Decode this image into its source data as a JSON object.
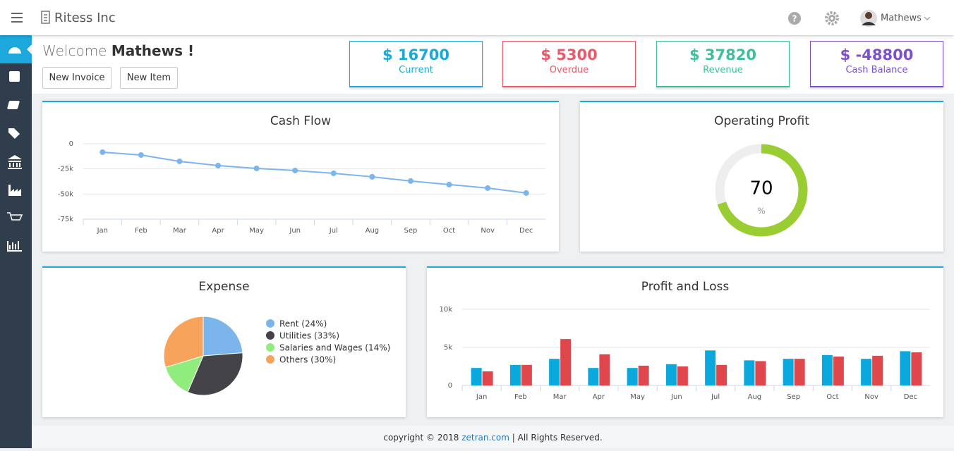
{
  "header": {
    "brand": "Ritess Inc",
    "user": "Mathews"
  },
  "welcome": {
    "greeting": "Welcome",
    "name": "Mathews !"
  },
  "buttons": [
    "New Invoice",
    "New Item"
  ],
  "kpis": [
    {
      "value": "$ 16700",
      "label": "Current",
      "color": "#1aa9d8"
    },
    {
      "value": "$ 5300",
      "label": "Overdue",
      "color": "#e8596b"
    },
    {
      "value": "$ 37820",
      "label": "Revenue",
      "color": "#3dbf9b"
    },
    {
      "value": "$ -48800",
      "label": "Cash Balance",
      "color": "#7b4fce"
    }
  ],
  "chart_data": [
    {
      "type": "line",
      "title": "Cash Flow",
      "categories": [
        "Jan",
        "Feb",
        "Mar",
        "Apr",
        "May",
        "Jun",
        "Jul",
        "Aug",
        "Sep",
        "Oct",
        "Nov",
        "Dec"
      ],
      "values": [
        -8400,
        -11200,
        -17500,
        -21700,
        -24500,
        -26600,
        -29400,
        -32900,
        -37100,
        -40600,
        -44100,
        -49000
      ],
      "color": "#7cb5ec",
      "ylim": [
        -75000,
        0
      ],
      "yticks": [
        0,
        {
          "value": -25000,
          "label": "-25k"
        },
        {
          "value": -50000,
          "label": "-50k"
        },
        {
          "value": -75000,
          "label": "-75k"
        }
      ],
      "grid": true
    },
    {
      "type": "gauge",
      "title": "Operating Profit",
      "value": 70,
      "unit": "%",
      "color": "#9acd32",
      "track_color": "#eeeeee"
    },
    {
      "type": "pie",
      "title": "Expense",
      "categories": [
        "Rent (24%)",
        "Utilities (33%)",
        "Salaries and Wages (14%)",
        "Others (30%)"
      ],
      "values": [
        24,
        33,
        14,
        30
      ],
      "colors": [
        "#7cb5ec",
        "#434348",
        "#90ed7d",
        "#f7a35c"
      ]
    },
    {
      "type": "bar",
      "title": "Profit and Loss",
      "categories": [
        "Jan",
        "Feb",
        "Mar",
        "Apr",
        "May",
        "Jun",
        "Jul",
        "Aug",
        "Sep",
        "Oct",
        "Nov",
        "Dec"
      ],
      "series": [
        {
          "color": "#0aa8dc",
          "values": [
            2300,
            2700,
            3500,
            2300,
            2300,
            2800,
            4600,
            3300,
            3500,
            4000,
            3500,
            4500
          ]
        },
        {
          "color": "#e0474c",
          "values": [
            1850,
            2700,
            6100,
            4100,
            2600,
            2500,
            2700,
            3200,
            3500,
            3800,
            3900,
            4350
          ]
        }
      ],
      "ylim": [
        0,
        10000
      ],
      "yticks": [
        0,
        {
          "value": 5000,
          "label": "5k"
        },
        {
          "value": 10000,
          "label": "10k"
        }
      ],
      "grid": true
    }
  ],
  "footer": {
    "copyright": "copyright © 2018",
    "link": "zetran.com",
    "rights": "| All Rights Reserved."
  }
}
